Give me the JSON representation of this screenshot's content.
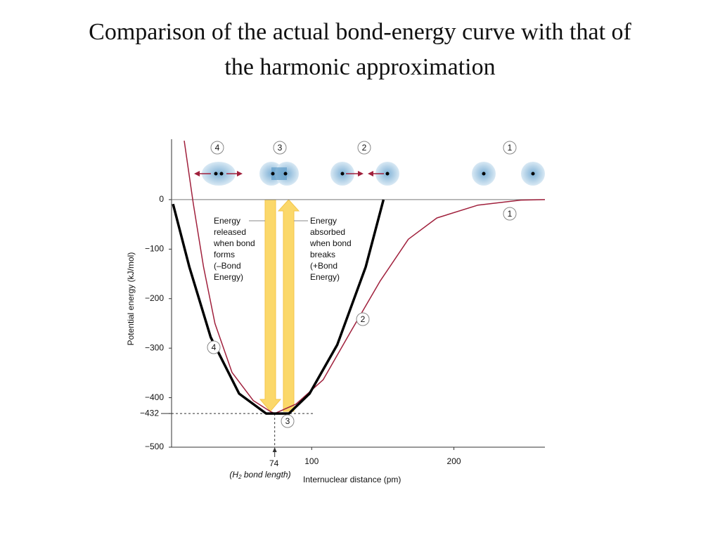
{
  "chart_data": {
    "type": "line",
    "title": [
      "Comparison of the actual bond-energy curve with that of",
      "the harmonic approximation"
    ],
    "xlabel": "Internuclear distance (pm)",
    "ylabel": "Potential energy (kJ/mol)",
    "xlim": [
      0,
      264
    ],
    "ylim": [
      -500,
      122
    ],
    "xticks": [
      74,
      100,
      200
    ],
    "yticks": [
      0,
      {
        "value": -100,
        "label": "−100"
      },
      {
        "value": -200,
        "label": "−200"
      },
      {
        "value": -300,
        "label": "−300"
      },
      {
        "value": -400,
        "label": "−400"
      },
      {
        "value": -432,
        "label": "−432"
      },
      {
        "value": -500,
        "label": "−500"
      }
    ],
    "bond_length_note": {
      "pre": "(H",
      "sub": "2",
      "post": " bond length)"
    },
    "series": [
      {
        "color": "#a0203c",
        "x": [
          10.4,
          16.8,
          24,
          32,
          44,
          59,
          71,
          74,
          89,
          108,
          128,
          148,
          168,
          188,
          217,
          247,
          264
        ],
        "values": [
          119,
          -9,
          -136,
          -250,
          -349,
          -406,
          -428,
          -432,
          -413,
          -364,
          -264,
          -165,
          -80,
          -37,
          -11,
          -1,
          0
        ]
      },
      {
        "color": "#000000",
        "x": [
          2.5,
          14,
          29,
          49,
          68,
          84,
          98.5,
          118,
          138,
          150.5
        ],
        "values": [
          -9,
          -136,
          -278,
          -392,
          -432,
          -432,
          -392,
          -293,
          -136,
          0
        ]
      }
    ],
    "annotations": {
      "released": [
        "Energy",
        "released",
        "when bond",
        "forms",
        "(–Bond",
        "Energy)"
      ],
      "absorbed": [
        "Energy",
        "absorbed",
        "when bond",
        "breaks",
        "(+Bond",
        "Energy)"
      ],
      "top_labels": [
        "4",
        "3",
        "2",
        "1"
      ],
      "curve_labels": [
        "1",
        "2",
        "4",
        "3"
      ]
    }
  }
}
